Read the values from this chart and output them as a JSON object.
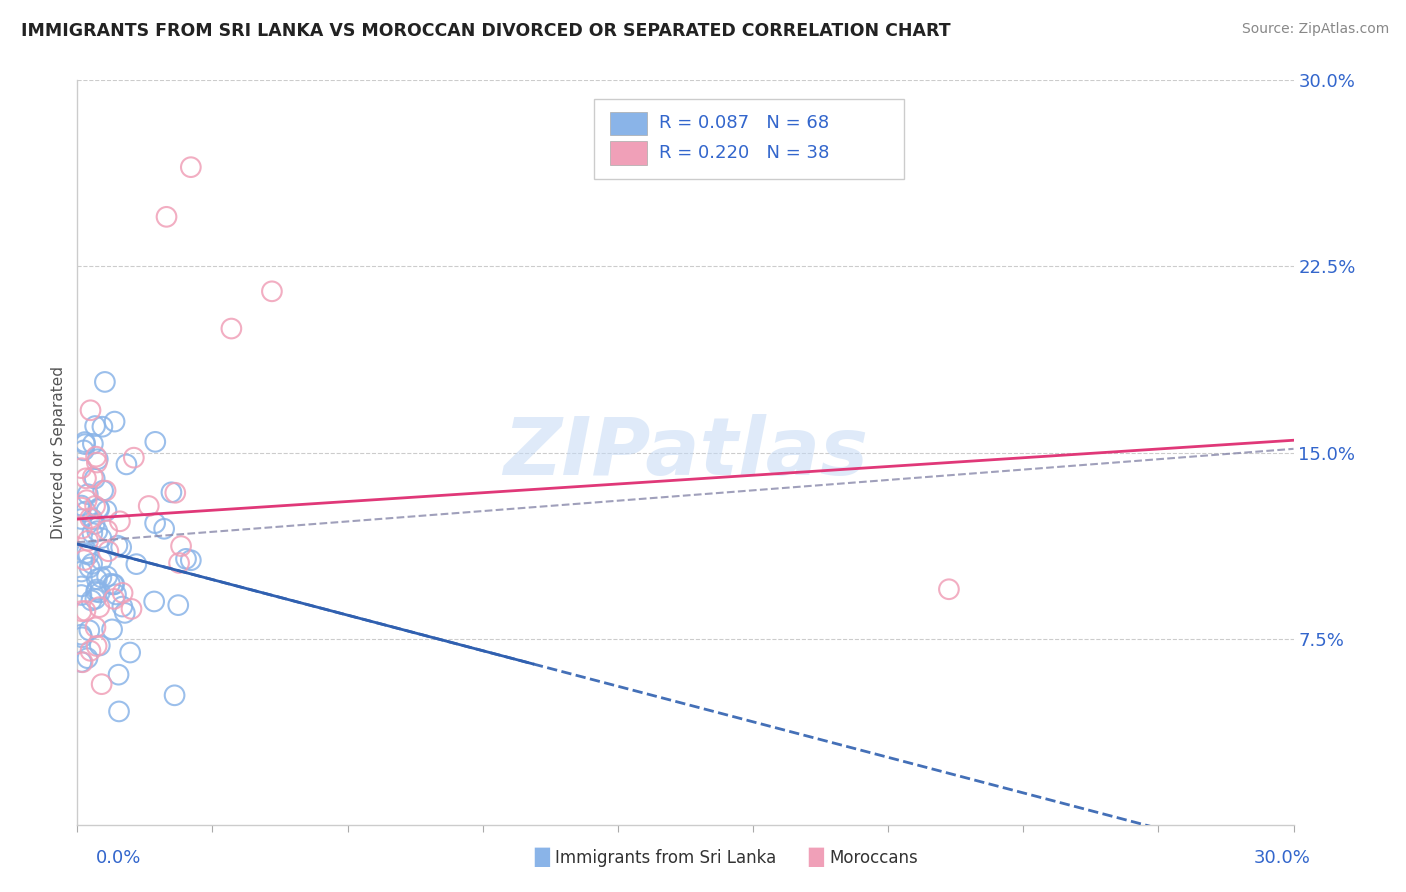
{
  "title": "IMMIGRANTS FROM SRI LANKA VS MOROCCAN DIVORCED OR SEPARATED CORRELATION CHART",
  "source": "Source: ZipAtlas.com",
  "ylabel": "Divorced or Separated",
  "r_sri": 0.087,
  "n_sri": 68,
  "r_mor": 0.22,
  "n_mor": 38,
  "xlim": [
    0.0,
    0.3
  ],
  "ylim": [
    0.0,
    0.3
  ],
  "ytick_vals": [
    0.0,
    0.075,
    0.15,
    0.225,
    0.3
  ],
  "ytick_labels": [
    "",
    "7.5%",
    "15.0%",
    "22.5%",
    "30.0%"
  ],
  "watermark": "ZIPatlas",
  "sri_color": "#8ab4e8",
  "mor_color": "#f0a0b8",
  "sri_line_color": "#3060b0",
  "mor_line_color": "#e03878",
  "dash_line_color": "#8888aa",
  "legend_text_color": "#3366cc",
  "background_color": "#ffffff",
  "legend_box_color": "#ffffff",
  "legend_border_color": "#cccccc"
}
